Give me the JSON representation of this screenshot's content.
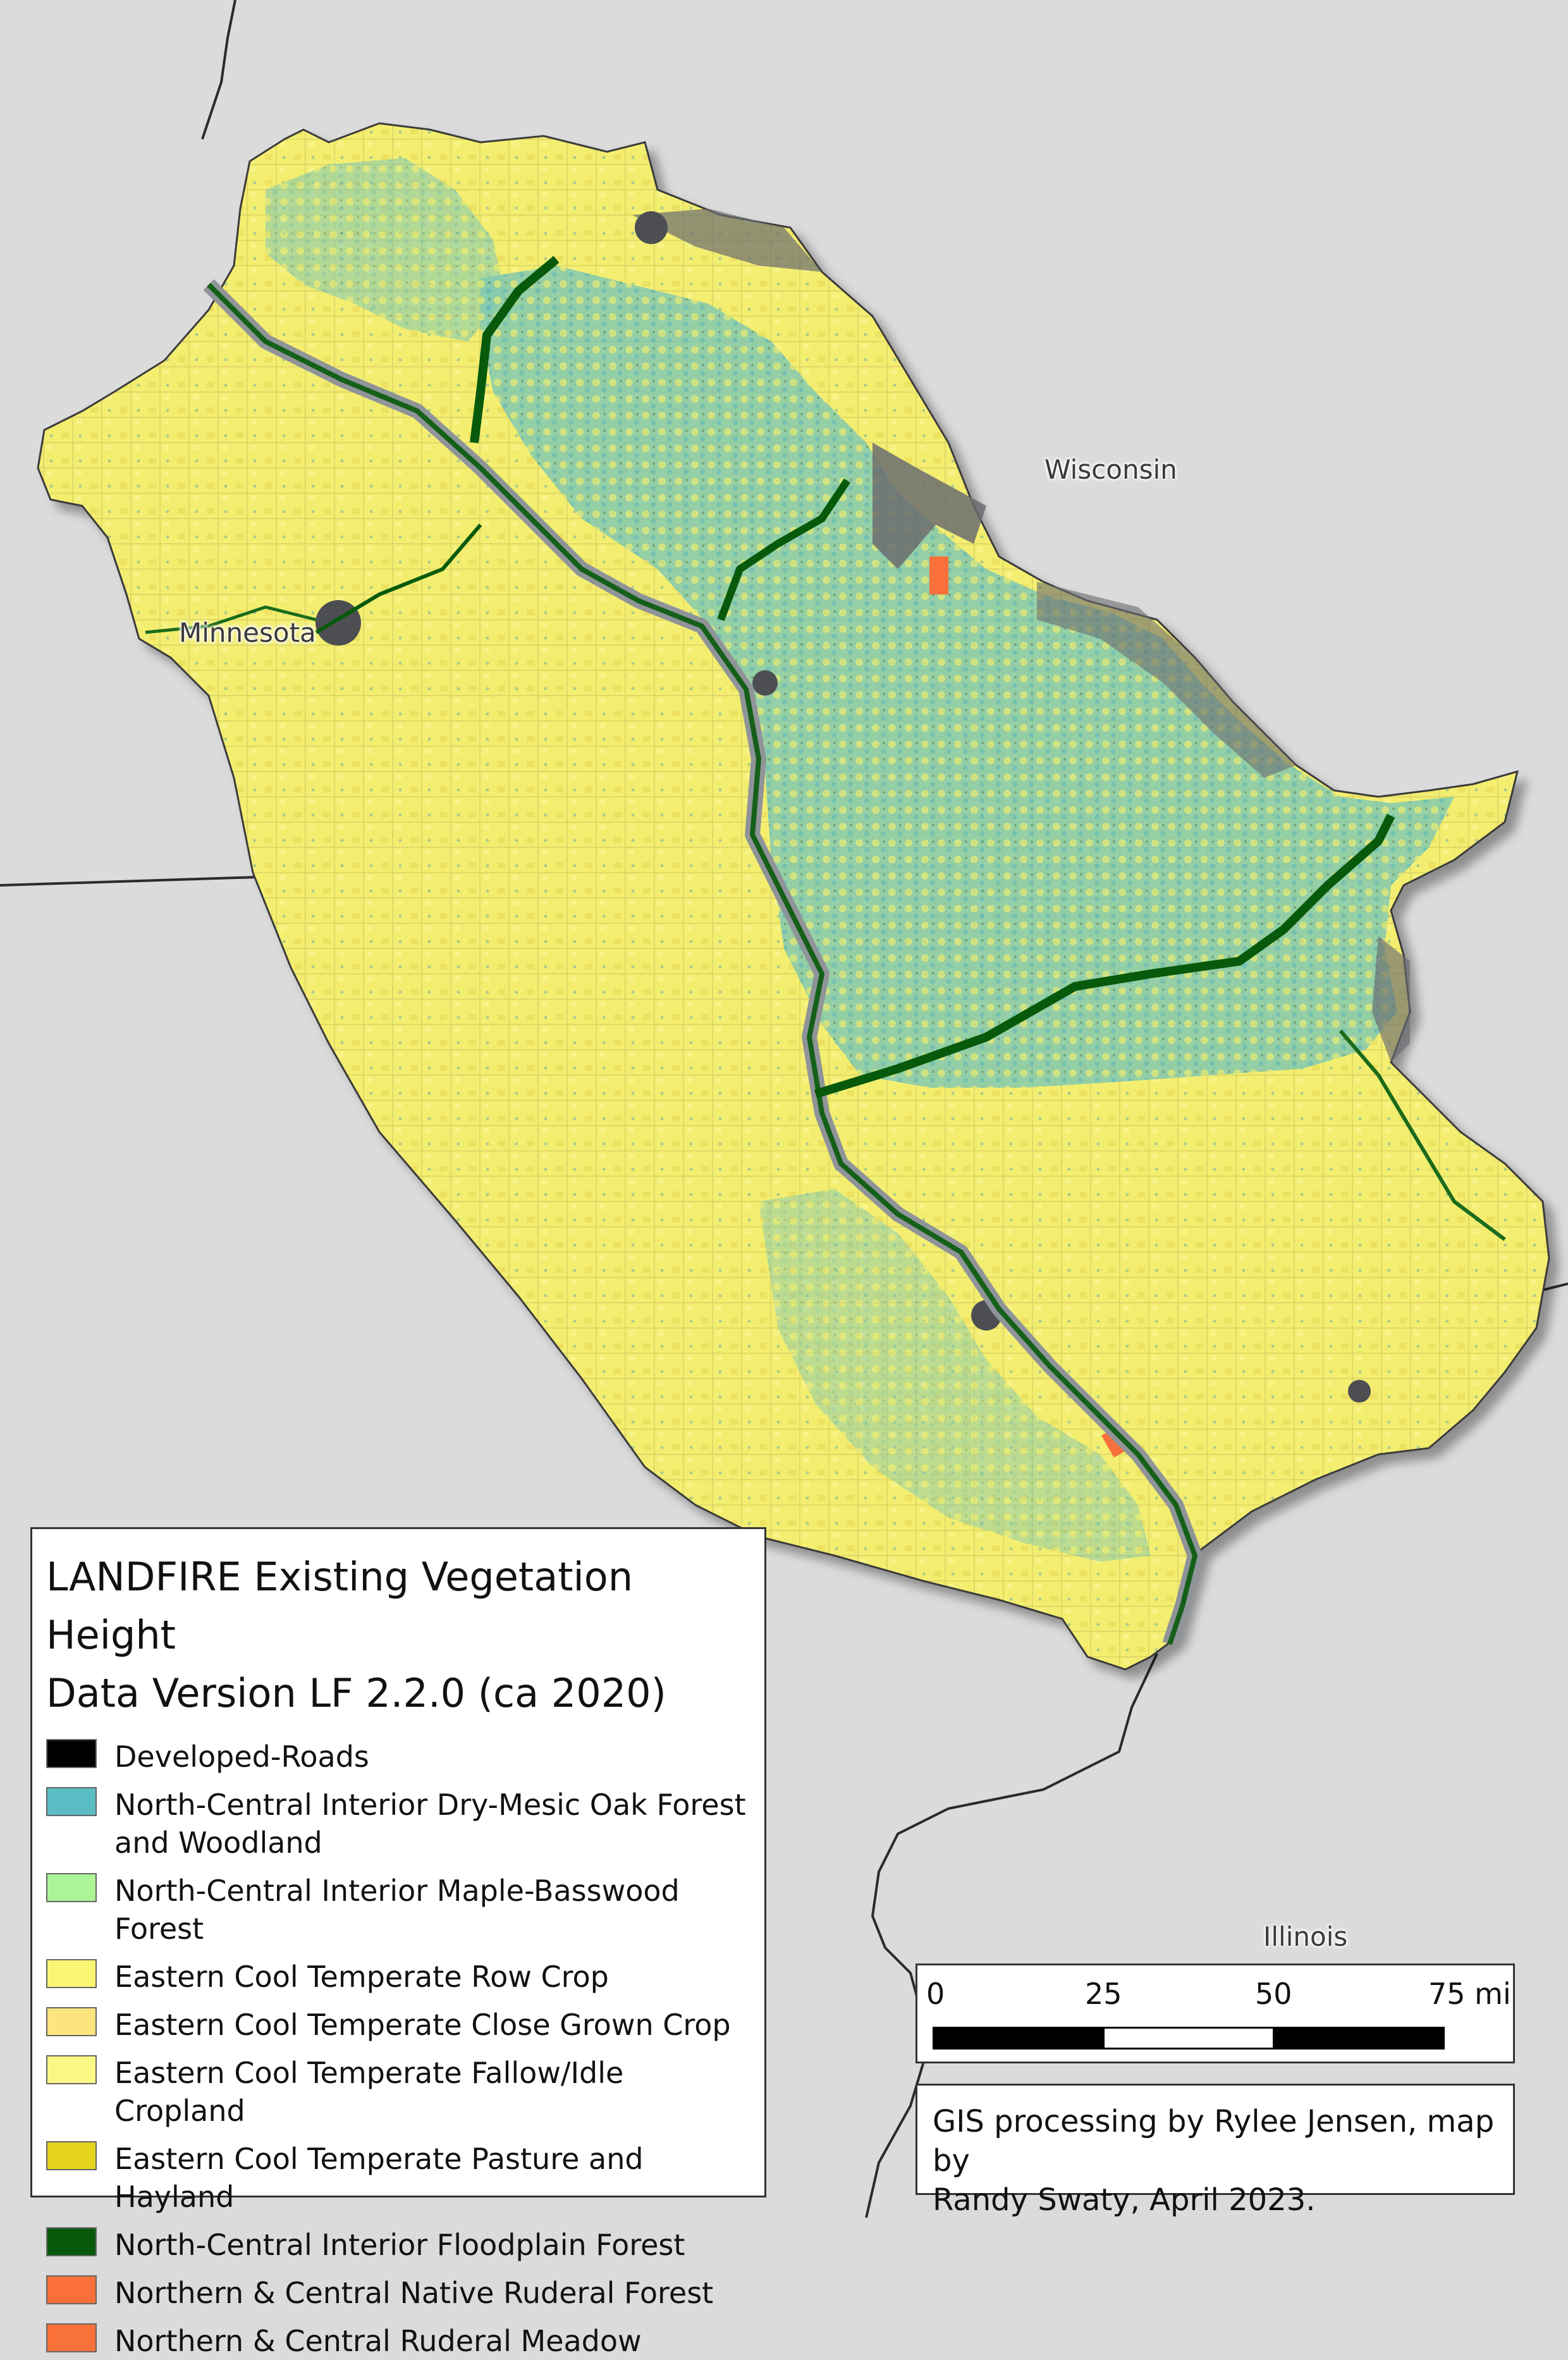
{
  "map": {
    "states": {
      "mn": "Minnesota",
      "wi": "Wisconsin",
      "il": "Illinois"
    },
    "colors": {
      "background": "#dcdbdc",
      "state_border": "#2b2b2b",
      "water": "#8f9498",
      "developed": "#5f6165"
    }
  },
  "legend": {
    "title_line1": "LANDFIRE Existing Vegetation Height",
    "title_line2": "Data Version LF 2.2.0 (ca 2020)",
    "items": [
      {
        "label": "Developed-Roads",
        "color": "#000000"
      },
      {
        "label": "North-Central Interior Dry-Mesic Oak Forest\n and Woodland",
        "color": "#5bbdc4"
      },
      {
        "label": "North-Central Interior Maple-Basswood Forest",
        "color": "#abf596"
      },
      {
        "label": "Eastern Cool Temperate Row Crop",
        "color": "#fbf574"
      },
      {
        "label": "Eastern Cool Temperate Close Grown Crop",
        "color": "#fce57c"
      },
      {
        "label": "Eastern Cool Temperate Fallow/Idle Cropland",
        "color": "#fbf985"
      },
      {
        "label": "Eastern Cool Temperate Pasture and Hayland",
        "color": "#e4d41e"
      },
      {
        "label": "North-Central Interior Floodplain Forest",
        "color": "#075a0b"
      },
      {
        "label": "Northern & Central Native Ruderal Forest",
        "color": "#f9703c"
      },
      {
        "label": "Northern & Central Ruderal Meadow",
        "color": "#f87139"
      }
    ]
  },
  "scale_bar": {
    "ticks": [
      "0",
      "25",
      "50",
      "75 mi"
    ]
  },
  "credit": {
    "line1": "GIS processing by Rylee Jensen, map by",
    "line2": "Randy Swaty, April 2023."
  }
}
